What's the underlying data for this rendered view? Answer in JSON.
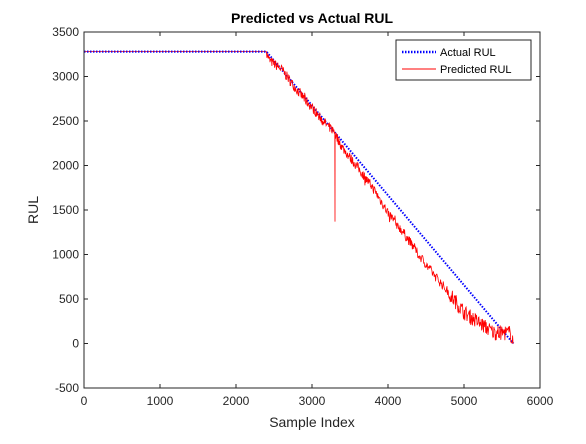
{
  "chart_data": {
    "type": "line",
    "title": "Predicted vs Actual RUL",
    "xlabel": "Sample Index",
    "ylabel": "RUL",
    "xlim": [
      0,
      6000
    ],
    "ylim": [
      -500,
      3500
    ],
    "xticks": [
      0,
      1000,
      2000,
      3000,
      4000,
      5000,
      6000
    ],
    "yticks": [
      -500,
      0,
      500,
      1000,
      1500,
      2000,
      2500,
      3000,
      3500
    ],
    "xtick_labels": [
      "0",
      "1000",
      "2000",
      "3000",
      "4000",
      "5000",
      "6000"
    ],
    "ytick_labels": [
      "-500",
      "0",
      "500",
      "1000",
      "1500",
      "2000",
      "2500",
      "3000",
      "3500"
    ],
    "grid": false,
    "legend_position": "top-right",
    "series": [
      {
        "name": "Actual RUL",
        "style": "dotted",
        "color": "#0000ff",
        "x": [
          0,
          2400,
          5650
        ],
        "y": [
          3280,
          3280,
          0
        ]
      },
      {
        "name": "Predicted RUL",
        "style": "solid",
        "color": "#ff0000",
        "x": [
          0,
          2400,
          2440,
          2600,
          2800,
          3000,
          3200,
          3300,
          3300,
          3305,
          3400,
          3600,
          3800,
          4000,
          4200,
          4400,
          4600,
          4800,
          5000,
          5200,
          5400,
          5600,
          5650
        ],
        "y": [
          3280,
          3280,
          3180,
          3080,
          2850,
          2650,
          2450,
          2380,
          1370,
          2350,
          2200,
          1980,
          1750,
          1470,
          1250,
          1000,
          780,
          570,
          350,
          230,
          120,
          120,
          40
        ],
        "noise": "high-frequency fluctuations of roughly ±100 around the trend after index 2400"
      }
    ]
  }
}
